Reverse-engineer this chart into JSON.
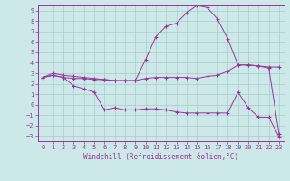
{
  "xlabel": "Windchill (Refroidissement éolien,°C)",
  "background_color": "#cce8e8",
  "grid_color": "#aacccc",
  "line_color": "#993399",
  "x_ticks": [
    0,
    1,
    2,
    3,
    4,
    5,
    6,
    7,
    8,
    9,
    10,
    11,
    12,
    13,
    14,
    15,
    16,
    17,
    18,
    19,
    20,
    21,
    22,
    23
  ],
  "y_ticks": [
    -3,
    -2,
    -1,
    0,
    1,
    2,
    3,
    4,
    5,
    6,
    7,
    8,
    9
  ],
  "xlim": [
    -0.5,
    23.5
  ],
  "ylim": [
    -3.5,
    9.5
  ],
  "line_max_x": [
    0,
    1,
    2,
    3,
    4,
    5,
    6,
    7,
    8,
    9,
    10,
    11,
    12,
    13,
    14,
    15,
    16,
    17,
    18,
    19,
    20,
    21,
    22,
    23
  ],
  "line_max_y": [
    2.6,
    3.0,
    2.8,
    2.7,
    2.6,
    2.5,
    2.4,
    2.3,
    2.3,
    2.3,
    4.3,
    6.5,
    7.5,
    7.8,
    8.8,
    9.5,
    9.3,
    8.2,
    6.3,
    3.8,
    3.8,
    3.7,
    3.5,
    -2.8
  ],
  "line_mid_x": [
    0,
    1,
    2,
    3,
    4,
    5,
    6,
    7,
    8,
    9,
    10,
    11,
    12,
    13,
    14,
    15,
    16,
    17,
    18,
    19,
    20,
    21,
    22,
    23
  ],
  "line_mid_y": [
    2.6,
    2.8,
    2.6,
    2.5,
    2.5,
    2.4,
    2.4,
    2.3,
    2.3,
    2.3,
    2.5,
    2.6,
    2.6,
    2.6,
    2.6,
    2.5,
    2.7,
    2.8,
    3.2,
    3.8,
    3.8,
    3.7,
    3.6,
    3.6
  ],
  "line_min_x": [
    0,
    1,
    2,
    3,
    4,
    5,
    6,
    7,
    8,
    9,
    10,
    11,
    12,
    13,
    14,
    15,
    16,
    17,
    18,
    19,
    20,
    21,
    22,
    23
  ],
  "line_min_y": [
    2.6,
    2.8,
    2.6,
    1.8,
    1.5,
    1.2,
    -0.5,
    -0.3,
    -0.5,
    -0.5,
    -0.4,
    -0.4,
    -0.5,
    -0.7,
    -0.8,
    -0.8,
    -0.8,
    -0.8,
    -0.8,
    1.2,
    -0.3,
    -1.2,
    -1.2,
    -3.1
  ],
  "tick_fontsize": 5,
  "xlabel_fontsize": 5.5
}
